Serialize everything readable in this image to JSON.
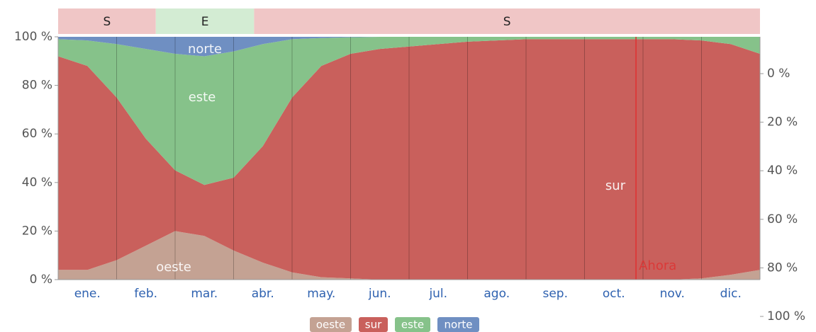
{
  "chart_data": {
    "type": "area",
    "stacked": true,
    "categories": [
      "ene.",
      "feb.",
      "mar.",
      "abr.",
      "may.",
      "jun.",
      "jul.",
      "ago.",
      "sep.",
      "oct.",
      "nov.",
      "dic."
    ],
    "x": [
      0,
      0.5,
      1,
      1.5,
      2,
      2.5,
      3,
      3.5,
      4,
      4.5,
      5,
      5.5,
      6,
      6.5,
      7,
      7.5,
      8,
      8.5,
      9,
      9.5,
      10,
      10.5,
      11,
      11.5,
      12
    ],
    "xlim": [
      0,
      12
    ],
    "series": [
      {
        "name": "oeste",
        "color": "#c4a293",
        "values": [
          4,
          4,
          8,
          14,
          20,
          18,
          12,
          7,
          3,
          1,
          0.5,
          0,
          0,
          0,
          0,
          0,
          0,
          0,
          0,
          0,
          0,
          0,
          0.5,
          2,
          4
        ]
      },
      {
        "name": "sur",
        "color": "#c9605c",
        "values": [
          88,
          84,
          67,
          44,
          25,
          21,
          30,
          48,
          72,
          87,
          92.5,
          95,
          96,
          97,
          98,
          98.5,
          99,
          99,
          99,
          99,
          99,
          99,
          98,
          95,
          89
        ]
      },
      {
        "name": "este",
        "color": "#86c28a",
        "values": [
          7,
          10.5,
          22,
          37,
          48,
          53,
          52,
          42,
          24,
          11.5,
          6.8,
          5,
          4,
          3,
          2,
          1.5,
          1,
          1,
          1,
          1,
          1,
          1,
          1.5,
          3,
          7
        ]
      },
      {
        "name": "norte",
        "color": "#6f8fc2",
        "values": [
          1,
          1.5,
          3,
          5,
          7,
          8,
          6,
          3,
          1,
          0.5,
          0.2,
          0,
          0,
          0,
          0,
          0,
          0,
          0,
          0,
          0,
          0,
          0,
          0,
          0,
          0
        ]
      }
    ],
    "ylim": [
      0,
      100
    ],
    "yticks": [
      {
        "value": 0,
        "label": "0 %"
      },
      {
        "value": 20,
        "label": "20 %"
      },
      {
        "value": 40,
        "label": "40 %"
      },
      {
        "value": 60,
        "label": "60 %"
      },
      {
        "value": 80,
        "label": "80 %"
      },
      {
        "value": 100,
        "label": "100 %"
      }
    ],
    "y2lim": [
      100,
      0
    ],
    "y2ticks": [
      {
        "value": 0,
        "label": "0 %"
      },
      {
        "value": 20,
        "label": "20 %"
      },
      {
        "value": 40,
        "label": "40 %"
      },
      {
        "value": 60,
        "label": "60 %"
      },
      {
        "value": 80,
        "label": "80 %"
      },
      {
        "value": 100,
        "label": "100 %"
      }
    ],
    "dominant": [
      {
        "label": "S",
        "from": 0,
        "to": 1.67,
        "color": "#f0c6c6"
      },
      {
        "label": "E",
        "from": 1.67,
        "to": 3.35,
        "color": "#d3ecd3"
      },
      {
        "label": "S",
        "from": 3.35,
        "to": 12,
        "color": "#f0c6c6"
      }
    ],
    "now": {
      "label": "Ahora",
      "x": 9.88,
      "color": "#e03030"
    }
  }
}
